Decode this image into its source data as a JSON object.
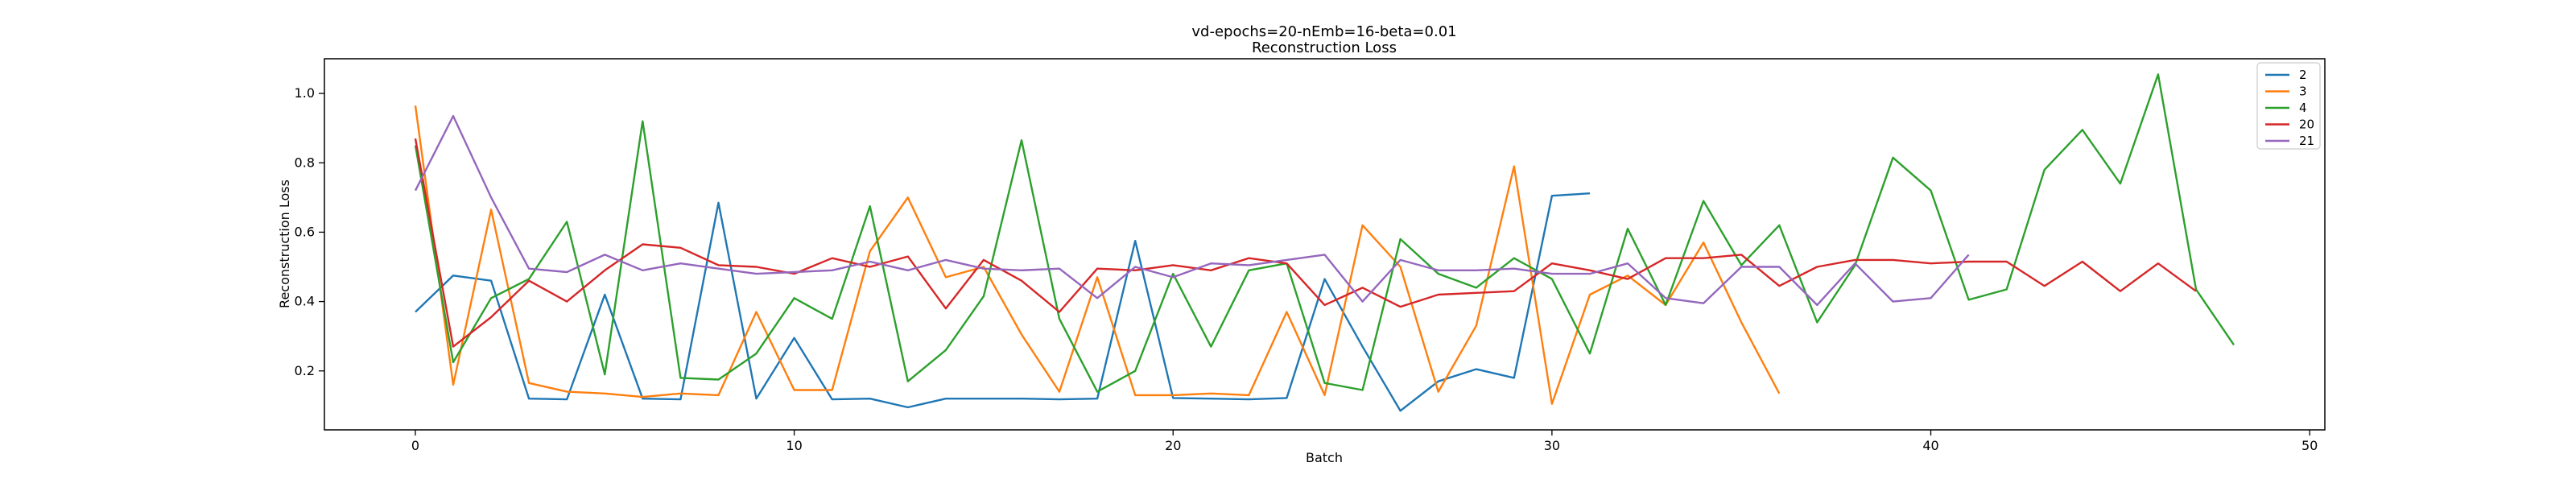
{
  "chart_data": {
    "type": "line",
    "title": "vd-epochs=20-nEmb=16-beta=0.01",
    "subtitle": "Reconstruction Loss",
    "xlabel": "Batch",
    "ylabel": "Reconstruction Loss",
    "xlim": [
      -2.4,
      50.4
    ],
    "ylim": [
      0.03,
      1.1
    ],
    "xticks": [
      0,
      10,
      20,
      30,
      40,
      50
    ],
    "yticks": [
      0.2,
      0.4,
      0.6,
      0.8,
      1.0
    ],
    "grid": false,
    "legend_position": "top-right",
    "series": [
      {
        "name": "2",
        "color": "#1f77b4",
        "y": [
          0.37,
          0.475,
          0.46,
          0.12,
          0.118,
          0.42,
          0.12,
          0.118,
          0.685,
          0.12,
          0.295,
          0.118,
          0.12,
          0.095,
          0.12,
          0.12,
          0.12,
          0.118,
          0.12,
          0.575,
          0.122,
          0.12,
          0.118,
          0.122,
          0.465,
          0.27,
          0.085,
          0.17,
          0.205,
          0.18,
          0.705,
          0.712
        ]
      },
      {
        "name": "3",
        "color": "#ff7f0e",
        "y": [
          0.965,
          0.16,
          0.665,
          0.165,
          0.14,
          0.135,
          0.125,
          0.135,
          0.13,
          0.37,
          0.145,
          0.145,
          0.545,
          0.7,
          0.47,
          0.5,
          0.305,
          0.14,
          0.47,
          0.13,
          0.13,
          0.135,
          0.13,
          0.37,
          0.13,
          0.62,
          0.5,
          0.14,
          0.33,
          0.79,
          0.105,
          0.42,
          0.475,
          0.39,
          0.57,
          0.34,
          0.135
        ]
      },
      {
        "name": "4",
        "color": "#2ca02c",
        "y": [
          0.85,
          0.225,
          0.41,
          0.465,
          0.63,
          0.19,
          0.92,
          0.18,
          0.175,
          0.25,
          0.41,
          0.35,
          0.675,
          0.17,
          0.26,
          0.415,
          0.865,
          0.35,
          0.14,
          0.2,
          0.48,
          0.27,
          0.49,
          0.51,
          0.165,
          0.145,
          0.58,
          0.48,
          0.44,
          0.525,
          0.465,
          0.25,
          0.61,
          0.39,
          0.69,
          0.505,
          0.62,
          0.34,
          0.505,
          0.815,
          0.72,
          0.405,
          0.435,
          0.78,
          0.895,
          0.74,
          1.055,
          0.435,
          0.275
        ]
      },
      {
        "name": "20",
        "color": "#d62728",
        "y": [
          0.87,
          0.27,
          0.355,
          0.46,
          0.4,
          0.49,
          0.565,
          0.555,
          0.505,
          0.5,
          0.48,
          0.525,
          0.5,
          0.53,
          0.38,
          0.52,
          0.46,
          0.37,
          0.495,
          0.49,
          0.505,
          0.49,
          0.525,
          0.51,
          0.39,
          0.44,
          0.385,
          0.42,
          0.425,
          0.43,
          0.51,
          0.49,
          0.465,
          0.525,
          0.525,
          0.535,
          0.445,
          0.5,
          0.52,
          0.52,
          0.51,
          0.515,
          0.515,
          0.445,
          0.515,
          0.43,
          0.51,
          0.43
        ]
      },
      {
        "name": "21",
        "color": "#9467bd",
        "y": [
          0.72,
          0.935,
          0.7,
          0.495,
          0.485,
          0.535,
          0.49,
          0.51,
          0.495,
          0.48,
          0.485,
          0.49,
          0.515,
          0.49,
          0.52,
          0.495,
          0.49,
          0.495,
          0.41,
          0.5,
          0.47,
          0.51,
          0.505,
          0.52,
          0.535,
          0.4,
          0.52,
          0.49,
          0.49,
          0.495,
          0.48,
          0.48,
          0.51,
          0.41,
          0.395,
          0.5,
          0.5,
          0.39,
          0.51,
          0.4,
          0.41,
          0.535
        ]
      }
    ]
  }
}
